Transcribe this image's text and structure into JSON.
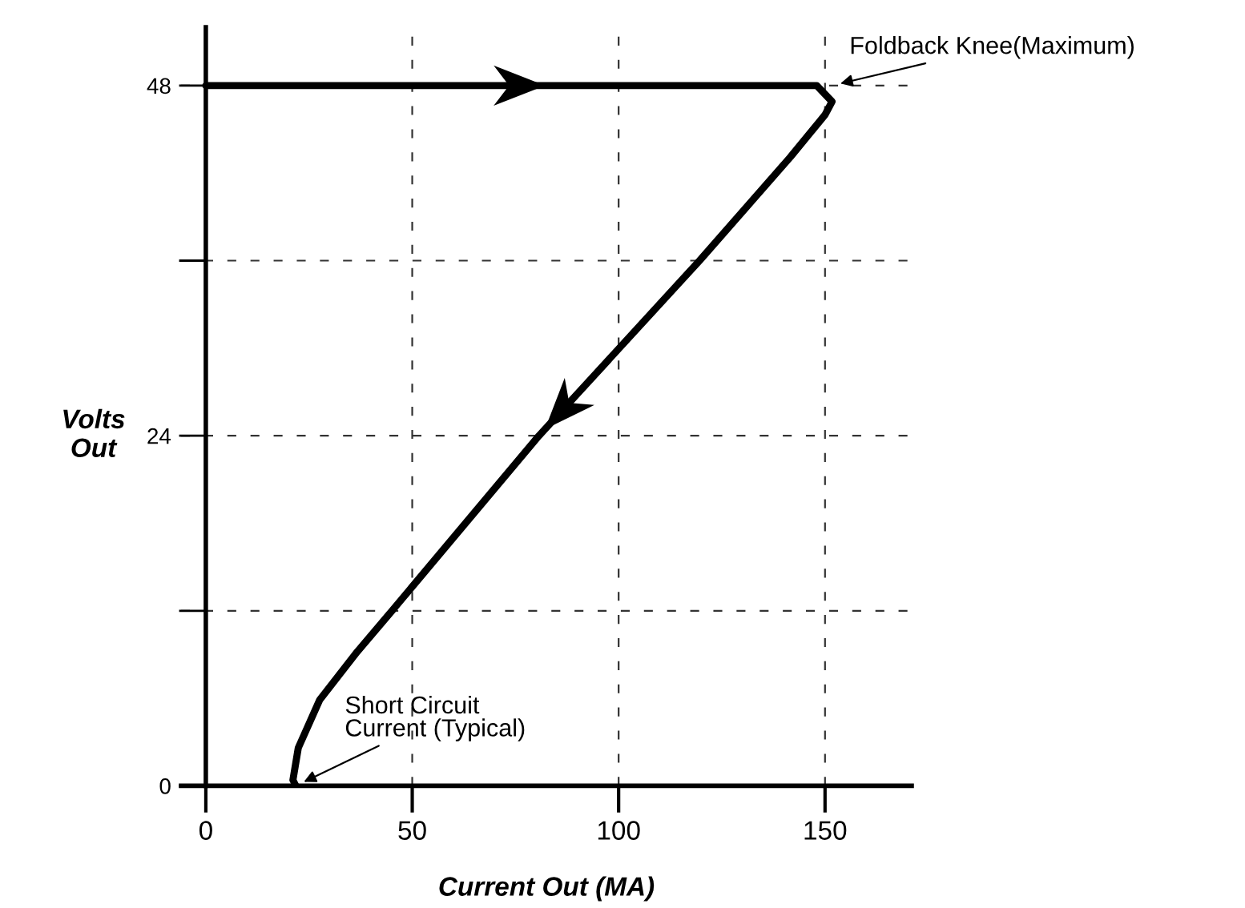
{
  "chart_data": {
    "type": "line",
    "xlabel": "Current Out (MA)",
    "ylabel": "Volts\nOut",
    "x": [
      0,
      148,
      151.7,
      150,
      141.6,
      119.6,
      80.7,
      45.1,
      36.7,
      27.6,
      22.4,
      21.1,
      21.8
    ],
    "series": [
      {
        "color": "#000000",
        "values": [
          48,
          48,
          46.9,
          46.0,
          43.1,
          36,
          24,
          12,
          9.2,
          5.9,
          2.6,
          0.4,
          0
        ]
      }
    ],
    "xlim": [
      -6,
      171
    ],
    "ylim": [
      0,
      52
    ],
    "xticks": [
      0,
      50,
      100,
      150
    ],
    "yticks": [
      0,
      {
        "value": 12,
        "label": null
      },
      24,
      {
        "value": 36,
        "label": null
      },
      48
    ],
    "grid": true,
    "line_style": "solid",
    "marker": "none",
    "annotations": [
      {
        "text": "Foldback Knee(Maximum)",
        "x": 151.6,
        "y": 48
      },
      {
        "text": "Short Circuit\nCurrent (Typical)",
        "x": 21.8,
        "y": 0
      }
    ]
  }
}
